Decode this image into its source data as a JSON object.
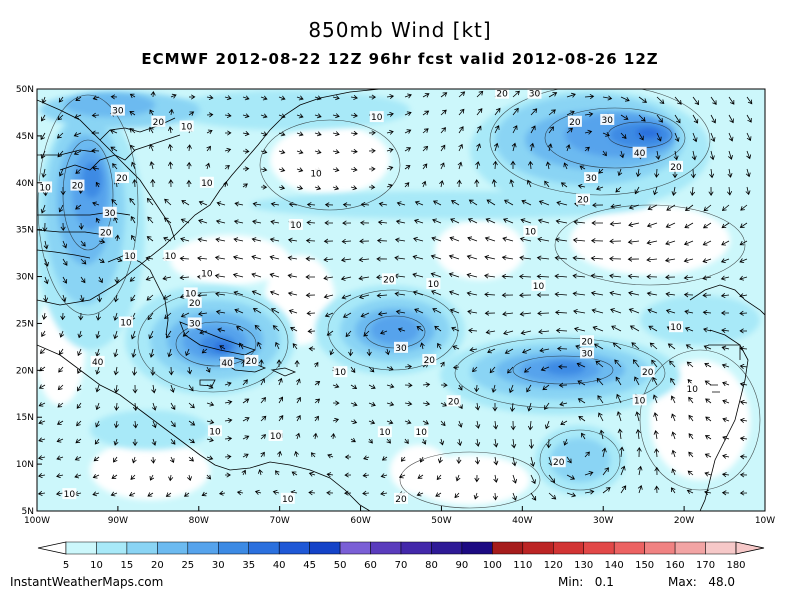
{
  "header": {
    "title": "850mb Wind [kt]",
    "subtitle": "ECMWF 2012-08-22 12Z 96hr fcst valid 2012-08-26 12Z"
  },
  "map": {
    "lon_range": [
      -100,
      -10
    ],
    "lat_range": [
      5,
      50
    ],
    "lat_labels": [
      "50N",
      "45N",
      "40N",
      "35N",
      "30N",
      "25N",
      "20N",
      "15N",
      "10N",
      "5N"
    ],
    "lon_labels": [
      "100W",
      "90W",
      "80W",
      "70W",
      "60W",
      "50W",
      "40W",
      "30W",
      "20W",
      "10W"
    ],
    "background_color": "#ccf7fb",
    "land_color": "#ffffff",
    "contour_labels": [
      {
        "text": "30",
        "lon": -90,
        "lat": 47.7
      },
      {
        "text": "20",
        "lon": -85,
        "lat": 46.5
      },
      {
        "text": "10",
        "lon": -81.5,
        "lat": 46
      },
      {
        "text": "10",
        "lon": -58,
        "lat": 47
      },
      {
        "text": "20",
        "lon": -42.5,
        "lat": 49.5
      },
      {
        "text": "30",
        "lon": -38.5,
        "lat": 49.5
      },
      {
        "text": "20",
        "lon": -33.5,
        "lat": 46.5
      },
      {
        "text": "30",
        "lon": -29.5,
        "lat": 46.7
      },
      {
        "text": "40",
        "lon": -25.5,
        "lat": 43.2
      },
      {
        "text": "20",
        "lon": -21,
        "lat": 41.7
      },
      {
        "text": "30",
        "lon": -31.5,
        "lat": 40.5
      },
      {
        "text": "20",
        "lon": -32.5,
        "lat": 38.2
      },
      {
        "text": "10",
        "lon": -99,
        "lat": 39.5
      },
      {
        "text": "20",
        "lon": -95,
        "lat": 39.7
      },
      {
        "text": "20",
        "lon": -89.5,
        "lat": 40.5
      },
      {
        "text": "10",
        "lon": -79,
        "lat": 40
      },
      {
        "text": "10",
        "lon": -65.5,
        "lat": 41
      },
      {
        "text": "30",
        "lon": -91,
        "lat": 36.8
      },
      {
        "text": "20",
        "lon": -91.5,
        "lat": 34.7
      },
      {
        "text": "10",
        "lon": -68,
        "lat": 35.5
      },
      {
        "text": "10",
        "lon": -39,
        "lat": 34.8
      },
      {
        "text": "10",
        "lon": -88.5,
        "lat": 32.2
      },
      {
        "text": "10",
        "lon": -83.5,
        "lat": 32.2
      },
      {
        "text": "10",
        "lon": -79,
        "lat": 30.3
      },
      {
        "text": "20",
        "lon": -56.5,
        "lat": 29.7
      },
      {
        "text": "10",
        "lon": -51,
        "lat": 29.2
      },
      {
        "text": "10",
        "lon": -38,
        "lat": 29
      },
      {
        "text": "10",
        "lon": -81,
        "lat": 28.2
      },
      {
        "text": "20",
        "lon": -80.5,
        "lat": 27.2
      },
      {
        "text": "10",
        "lon": -89,
        "lat": 25.1
      },
      {
        "text": "30",
        "lon": -80.5,
        "lat": 25
      },
      {
        "text": "20",
        "lon": -32,
        "lat": 23.1
      },
      {
        "text": "10",
        "lon": -21,
        "lat": 24.6
      },
      {
        "text": "30",
        "lon": -55,
        "lat": 22.4
      },
      {
        "text": "30",
        "lon": -32,
        "lat": 21.8
      },
      {
        "text": "40",
        "lon": -92.5,
        "lat": 20.9
      },
      {
        "text": "40",
        "lon": -76.5,
        "lat": 20.8
      },
      {
        "text": "20",
        "lon": -73.5,
        "lat": 21
      },
      {
        "text": "20",
        "lon": -51.5,
        "lat": 21.1
      },
      {
        "text": "10",
        "lon": -62.5,
        "lat": 19.8
      },
      {
        "text": "20",
        "lon": -24.5,
        "lat": 19.8
      },
      {
        "text": "10",
        "lon": -19,
        "lat": 18
      },
      {
        "text": "20",
        "lon": -48.5,
        "lat": 16.7
      },
      {
        "text": "10",
        "lon": -25.5,
        "lat": 16.8
      },
      {
        "text": "10",
        "lon": -78,
        "lat": 13.5
      },
      {
        "text": "10",
        "lon": -57,
        "lat": 13.4
      },
      {
        "text": "10",
        "lon": -52.5,
        "lat": 13.4
      },
      {
        "text": "10",
        "lon": -70.5,
        "lat": 13
      },
      {
        "text": "20",
        "lon": -35.5,
        "lat": 10.2
      },
      {
        "text": "10",
        "lon": -96,
        "lat": 6.8
      },
      {
        "text": "10",
        "lon": -69,
        "lat": 6.3
      },
      {
        "text": "20",
        "lon": -55,
        "lat": 6.3
      }
    ]
  },
  "colorbar": {
    "labels": [
      "5",
      "10",
      "15",
      "20",
      "25",
      "30",
      "35",
      "40",
      "45",
      "50",
      "60",
      "70",
      "80",
      "90",
      "100",
      "110",
      "120",
      "130",
      "140",
      "150",
      "160",
      "170",
      "180"
    ],
    "colors": [
      "#ffffff",
      "#ccf7fb",
      "#a8e9f8",
      "#8ad4f4",
      "#6cbaf0",
      "#56a3ec",
      "#3c8ae4",
      "#2b70de",
      "#1f58d6",
      "#1443c8",
      "#7a5fd6",
      "#5a3cbd",
      "#4328aa",
      "#2e1a96",
      "#1c0a82",
      "#a61c1c",
      "#bc2424",
      "#d23434",
      "#e24848",
      "#ec6262",
      "#f08282",
      "#f2a4a4",
      "#f6c8c8"
    ]
  },
  "footer": {
    "source": "InstantWeatherMaps.com",
    "min_label": "Min:",
    "min_value": "0.1",
    "max_label": "Max:",
    "max_value": "48.0"
  }
}
